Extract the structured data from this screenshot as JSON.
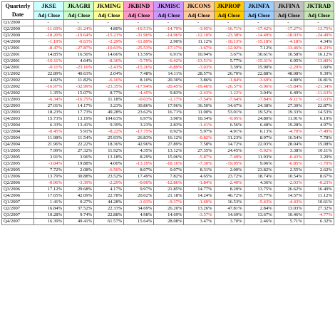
{
  "table": {
    "quarter_header": [
      "Quarterly",
      "Date"
    ],
    "subheader": "Adj Close",
    "columns": [
      {
        "name": "JKSE",
        "color": "#ccffff"
      },
      {
        "name": "JKAGRI",
        "color": "#ccffcc"
      },
      {
        "name": "JKMING",
        "color": "#ffff99"
      },
      {
        "name": "JKBIND",
        "color": "#ff99cc"
      },
      {
        "name": "JKMISC",
        "color": "#cc99ff"
      },
      {
        "name": "JKCONS",
        "color": "#ffcc99"
      },
      {
        "name": "JKPROP",
        "color": "#ffcc00"
      },
      {
        "name": "JKINFA",
        "color": "#99ccff"
      },
      {
        "name": "JKFINA",
        "color": "#c0c0c0"
      },
      {
        "name": "JKTRAD",
        "color": "#c6e7b4"
      }
    ],
    "rows": [
      [
        "Q1/2000",
        "-",
        "-",
        "-",
        "-",
        "-",
        "-",
        "-",
        "-",
        "-",
        "-"
      ],
      [
        "Q2/2000",
        "-11.69%",
        "-21.24%",
        "4.80%",
        "-10.51%",
        "-14.79%",
        "-3.95%",
        "-16.71%",
        "-17.42%",
        "-17.27%",
        "-13.75%"
      ],
      [
        "Q3/2000",
        "-18.20%",
        "-19.64%",
        "-15.21%",
        "-31.90%",
        "-14.96%",
        "-12.10%",
        "-23.38%",
        "-14.49%",
        "-18.03%",
        "-24.49%"
      ],
      [
        "Q4/2000",
        "-1.19%",
        "-0.63%",
        "-2.29%",
        "-11.89%",
        "2.90%",
        "11.12%",
        "-10.13%",
        "-15.18%",
        "-4.18%",
        "4.34%"
      ],
      [
        "Q1/2001",
        "-8.47%",
        "-27.87%",
        "-10.63%",
        "-25.53%",
        "-17.17%",
        "-1.67%",
        "-12.92%",
        "7.12%",
        "-13.46%",
        "-16.23%"
      ],
      [
        "Q2/2001",
        "14.85%",
        "16.50%",
        "14.66%",
        "13.59%",
        "6.91%",
        "10.94%",
        "3.67%",
        "30.61%",
        "10.58%",
        "16.12%"
      ],
      [
        "Q3/2001",
        "-10.11%",
        "4.64%",
        "-8.36%",
        "-5.79%",
        "-6.42%",
        "-13.51%",
        "5.77%",
        "-15.31%",
        "6.95%",
        "-13.80%"
      ],
      [
        "Q4/2001",
        "-0.11%",
        "-23.16%",
        "-2.41%",
        "-15.26%",
        "-6.89%",
        "-3.03%",
        "3.39%",
        "15.90%",
        "-2.29%",
        "1.60%"
      ],
      [
        "Q1/2002",
        "22.89%",
        "40.63%",
        "2.04%",
        "7.48%",
        "14.11%",
        "28.57%",
        "26.70%",
        "22.88%",
        "48.08%",
        "9.39%"
      ],
      [
        "Q2/2002",
        "4.82%",
        "11.82%",
        "-6.16%",
        "8.10%",
        "20.30%",
        "3.86%",
        "-1.84%",
        "-3.69%",
        "4.80%",
        "16.81%"
      ],
      [
        "Q3/2002",
        "-16.97%",
        "-32.99%",
        "-23.35%",
        "-17.94%",
        "-20.45%",
        "-19.46%",
        "-26.57%",
        "-5.96%",
        "-15.84%",
        "-21.34%"
      ],
      [
        "Q4/2002",
        "1.35%",
        "15.07%",
        "8.77%",
        "-4.45%",
        "9.83%",
        "-2.43%",
        "-1.22%",
        "3.04%",
        "6.49%",
        "-11.63%"
      ],
      [
        "Q1/2003",
        "-6.34%",
        "-16.75%",
        "11.18%",
        "-0.03%",
        "-1.17%",
        "-7.54%",
        "-7.64%",
        "-7.84%",
        "-9.11%",
        "-11.63%"
      ],
      [
        "Q2/2003",
        "27.01%",
        "14.17%",
        "3.23%",
        "30.86%",
        "17.96%",
        "36.50%",
        "34.67%",
        "24.38%",
        "27.30%",
        "22.87%"
      ],
      [
        "Q3/2003",
        "18.23%",
        "17.73%",
        "49.28%",
        "23.62%",
        "16.71%",
        "11.00%",
        "53.01%",
        "19.52%",
        "19.33%",
        "14.53%"
      ],
      [
        "Q4/2003",
        "15.73%",
        "13.19%",
        "104.63%",
        "6.97%",
        "3.90%",
        "10.34%",
        "-9.05%",
        "24.80%",
        "11.91%",
        "6.19%"
      ],
      [
        "Q1/2004",
        "6.33%",
        "13.41%",
        "9.39%",
        "3.23%",
        "2.83%",
        "-1.41%",
        "6.56%",
        "6.48%",
        "19.28%",
        "4.97%"
      ],
      [
        "Q2/2004",
        "-0.45%",
        "5.91%",
        "-8.22%",
        "-17.75%",
        "0.92%",
        "5.97%",
        "4.91%",
        "6.13%",
        "-4.70%",
        "-7.49%"
      ],
      [
        "Q3/2004",
        "11.98%",
        "11.54%",
        "25.93%",
        "26.83%",
        "16.12%",
        "-0.82%",
        "31.23%",
        "8.97%",
        "16.54%",
        "7.78%"
      ],
      [
        "Q4/2004",
        "21.96%",
        "22.22%",
        "18.36%",
        "42.96%",
        "27.89%",
        "7.58%",
        "14.72%",
        "22.03%",
        "28.04%",
        "15.08%"
      ],
      [
        "Q1/2005",
        "7.99%",
        "27.32%",
        "11.92%",
        "4.35%",
        "13.12%",
        "27.35%",
        "24.45%",
        "-5.92%",
        "3.38%",
        "10.11%"
      ],
      [
        "Q2/2005",
        "3.91%",
        "3.96%",
        "13.18%",
        "8.29%",
        "15.06%",
        "-5.87%",
        "-7.49%",
        "11.93%",
        "-0.43%",
        "3.20%"
      ],
      [
        "Q3/2005",
        "-3.84%",
        "19.88%",
        "4.00%",
        "-13.19%",
        "-18.16%",
        "-7.30%",
        "-19.95%",
        "9.06%",
        "-6.85%",
        "-1.70%"
      ],
      [
        "Q4/2005",
        "7.72%",
        "2.08%",
        "-6.56%",
        "8.07%",
        "0.07%",
        "8.31%",
        "2.00%",
        "23.82%",
        "2.55%",
        "2.62%"
      ],
      [
        "Q1/2006",
        "13.79%",
        "30.88%",
        "23.52%",
        "17.49%",
        "7.82%",
        "4.65%",
        "23.72%",
        "18.74%",
        "10.54%",
        "8.67%"
      ],
      [
        "Q2/2006",
        "-0.96%",
        "-3.39%",
        "-2.29%",
        "-0.00%",
        "-12.86%",
        "-1.84%",
        "-2.40%",
        "4.36%",
        "-2.03%",
        "-0.23%"
      ],
      [
        "Q3/2006",
        "17.12%",
        "29.68%",
        "4.17%",
        "9.97%",
        "21.85%",
        "14.77%",
        "8.20%",
        "13.75%",
        "26.62%",
        "16.40%"
      ],
      [
        "Q4/2006",
        "17.65%",
        "42.09%",
        "22.78%",
        "20.02%",
        "21.18%",
        "14.24%",
        "46.72%",
        "15.77%",
        "14.57%",
        "11.12%"
      ],
      [
        "Q1/2007",
        "1.41%",
        "0.27%",
        "44.28%",
        "-1.03%",
        "-9.37%",
        "-1.69%",
        "16.53%",
        "-5.43%",
        "-4.43%",
        "10.61%"
      ],
      [
        "Q2/2007",
        "16.84%",
        "37.52%",
        "22.33%",
        "34.69%",
        "26.20%",
        "13.26%",
        "47.81%",
        "2.84%",
        "13.03%",
        "27.32%"
      ],
      [
        "Q3/2007",
        "10.28%",
        "9.74%",
        "22.88%",
        "4.98%",
        "14.69%",
        "-3.57%",
        "14.69%",
        "13.67%",
        "10.46%",
        "-4.77%"
      ],
      [
        "Q4/2007",
        "16.39%",
        "49.41%",
        "61.57%",
        "15.64%",
        "28.08%",
        "3.47%",
        "3.70%",
        "2.46%",
        "5.71%",
        "6.32%"
      ]
    ]
  }
}
